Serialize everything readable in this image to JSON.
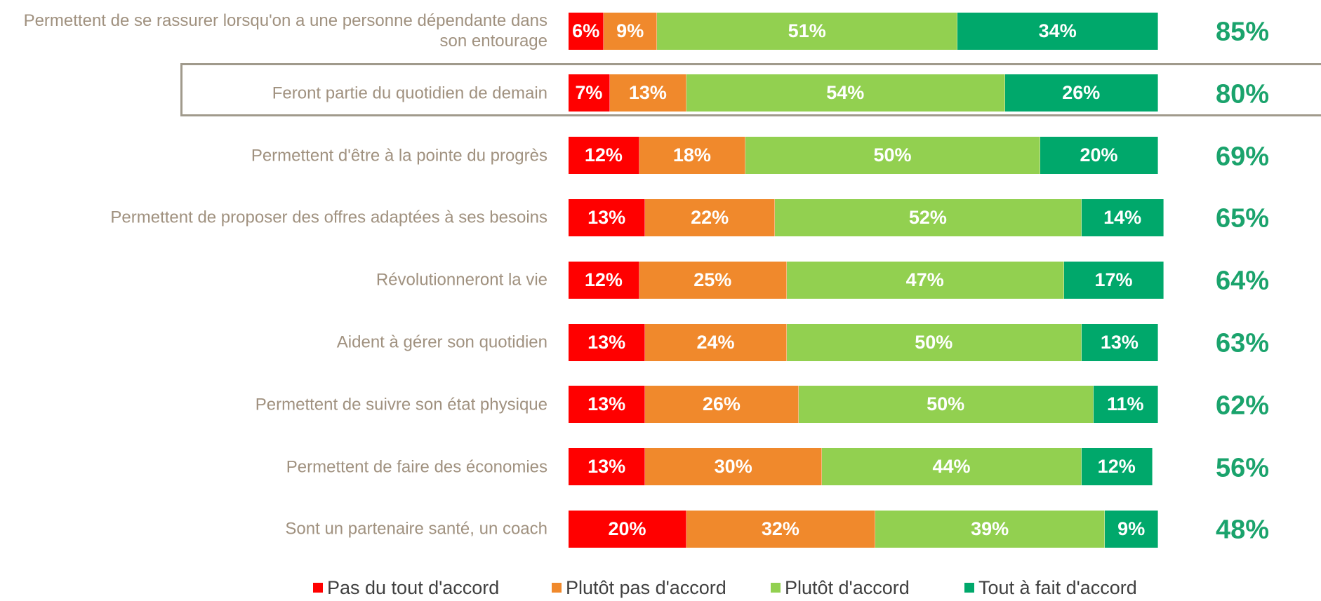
{
  "chart_data": {
    "type": "stacked-bar-horizontal",
    "categories": [
      "Permettent de se rassurer lorsqu'on a une personne dépendante dans son entourage",
      "Feront partie du quotidien de demain",
      "Permettent d'être à la pointe du progrès",
      "Permettent de proposer des offres adaptées à ses besoins",
      "Révolutionneront la vie",
      "Aident à gérer son quotidien",
      "Permettent de suivre son état physique",
      "Permettent de faire des économies",
      "Sont un partenaire santé, un coach"
    ],
    "xlim": [
      0,
      100
    ],
    "series": [
      {
        "name": "Pas du tout d'accord",
        "color": "#ff0000",
        "values": [
          6,
          7,
          12,
          13,
          12,
          13,
          13,
          13,
          20
        ],
        "value_labels": [
          "6%",
          "7%",
          "12%",
          "13%",
          "12%",
          "13%",
          "13%",
          "13%",
          "20%"
        ]
      },
      {
        "name": "Plutôt pas d'accord",
        "color": "#f0892c",
        "values": [
          9,
          13,
          18,
          22,
          25,
          24,
          26,
          30,
          32
        ],
        "value_labels": [
          "9%",
          "13%",
          "18%",
          "22%",
          "25%",
          "24%",
          "26%",
          "30%",
          "32%"
        ]
      },
      {
        "name": "Plutôt d'accord",
        "color": "#92d050",
        "values": [
          51,
          54,
          50,
          52,
          47,
          50,
          50,
          44,
          39
        ],
        "value_labels": [
          "51%",
          "54%",
          "50%",
          "52%",
          "47%",
          "50%",
          "50%",
          "44%",
          "39%"
        ]
      },
      {
        "name": "Tout à fait d'accord",
        "color": "#00a86b",
        "values": [
          34,
          26,
          20,
          14,
          17,
          13,
          11,
          12,
          9
        ],
        "value_labels": [
          "34%",
          "26%",
          "20%",
          "14%",
          "17%",
          "13%",
          "11%",
          "12%",
          "9%"
        ]
      }
    ],
    "totals": {
      "values": [
        85,
        80,
        69,
        65,
        64,
        63,
        62,
        56,
        48
      ],
      "value_labels": [
        "85%",
        "80%",
        "69%",
        "65%",
        "64%",
        "63%",
        "62%",
        "56%",
        "48%"
      ]
    }
  }
}
